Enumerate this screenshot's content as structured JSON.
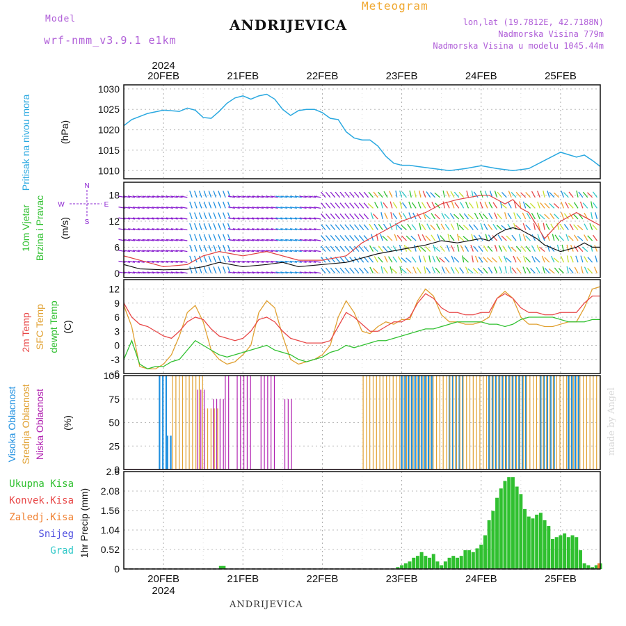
{
  "header": {
    "model_label": "Model",
    "model_name": "wrf-nmm_v3.9.1  e1km",
    "station": "ANDRIJEVICA",
    "meteogram": "Meteogram",
    "lonlat": "lon,lat (19.7812E, 42.7188N)",
    "altitude": "Nadmorska Visina 779m",
    "model_altitude": "Nadmorska Visina u modelu 1045.44m"
  },
  "footer": {
    "station": "ANDRIJEVICA",
    "credit": "made by Angel"
  },
  "date_axis": {
    "year": "2024",
    "labels": [
      "20FEB",
      "21FEB",
      "22FEB",
      "23FEB",
      "24FEB",
      "25FEB"
    ]
  },
  "colors": {
    "pressure": "#29a8e0",
    "wind_speed": "#111111",
    "wind_gust": "#e04040",
    "t2m": "#e84848",
    "sfc": "#e0a030",
    "dewpt": "#30c030",
    "high_cloud": "#2090e0",
    "mid_cloud": "#e0a030",
    "low_cloud": "#b020b0",
    "precip": "#30c030",
    "conv": "#e84848",
    "frz": "#f08030",
    "snow": "#5050e0",
    "hail": "#30c8c8",
    "wind_purple": "#8a20d0"
  },
  "panels": {
    "pressure": {
      "ylabel_name": "Pritisak na nivou mora",
      "unit": "(hPa)"
    },
    "wind": {
      "ylabel_name1": "10m Vjetar",
      "ylabel_name2": "Brzina i Pravac",
      "unit": "(m/s)",
      "compass_n": "N",
      "compass_s": "S",
      "compass_w": "W",
      "compass_e": "E"
    },
    "temp": {
      "label1": "2m Temp",
      "label2": "SFC Temp",
      "label3": "dewpt Temp",
      "unit": "(C)"
    },
    "cloud": {
      "label1": "Visoka Oblacnost",
      "label2": "Srednja Oblacnost",
      "label3": "Niska Oblacnost",
      "unit": "(%)"
    },
    "precip": {
      "unit": "1hr Precip (mm)",
      "legend": [
        "Ukupna Kisa",
        "Konvek.Kisa",
        "Zaledj.Kisa",
        "Snijeg",
        "Grad"
      ]
    }
  },
  "chart_data": [
    {
      "type": "line",
      "title": "",
      "ylabel": "Pritisak na nivou mora (hPa)",
      "ylim": [
        1008,
        1031
      ],
      "yticks": [
        1010,
        1015,
        1020,
        1025,
        1030
      ],
      "x_unit": "days since 20FEB 00UTC",
      "x": [
        -0.5,
        -0.4,
        -0.2,
        0,
        0.2,
        0.3,
        0.4,
        0.5,
        0.6,
        0.7,
        0.8,
        0.9,
        1.0,
        1.1,
        1.2,
        1.3,
        1.4,
        1.5,
        1.6,
        1.7,
        1.8,
        1.9,
        2.0,
        2.1,
        2.2,
        2.3,
        2.4,
        2.5,
        2.6,
        2.7,
        2.8,
        2.9,
        3.0,
        3.1,
        3.2,
        3.4,
        3.6,
        3.8,
        4.0,
        4.2,
        4.4,
        4.6,
        4.8,
        5.0,
        5.2,
        5.3,
        5.4,
        5.5
      ],
      "series": [
        {
          "name": "Pritisak",
          "values": [
            1021,
            1022.5,
            1024,
            1024.8,
            1024.5,
            1025.3,
            1024.8,
            1023,
            1022.8,
            1024.5,
            1026.5,
            1027.8,
            1028.3,
            1027.5,
            1028.3,
            1028.7,
            1027.5,
            1025,
            1023.5,
            1024.7,
            1025,
            1025,
            1024.2,
            1022.8,
            1022.5,
            1019.5,
            1018,
            1017.5,
            1017.5,
            1016,
            1013.5,
            1011.8,
            1011.3,
            1011.3,
            1011,
            1010.5,
            1010,
            1010.5,
            1011.2,
            1010.5,
            1010,
            1010.5,
            1012.5,
            1014.5,
            1013.3,
            1013.8,
            1012.5,
            1011
          ]
        }
      ]
    },
    {
      "type": "line",
      "title": "",
      "ylabel": "10m Vjetar Brzina i Pravac (m/s)",
      "ylim": [
        -1,
        21
      ],
      "yticks": [
        0,
        6,
        12,
        18
      ],
      "x_unit": "days since 20FEB 00UTC",
      "x": [
        -0.5,
        -0.3,
        0,
        0.3,
        0.5,
        0.7,
        1.0,
        1.3,
        1.5,
        1.7,
        2.0,
        2.3,
        2.5,
        2.7,
        3.0,
        3.3,
        3.5,
        3.7,
        4.0,
        4.1,
        4.2,
        4.3,
        4.4,
        4.5,
        4.6,
        4.7,
        4.8,
        5.0,
        5.2,
        5.3,
        5.4,
        5.5
      ],
      "series": [
        {
          "name": "speed",
          "values": [
            2,
            1,
            0.8,
            0.9,
            1.5,
            2.5,
            1.5,
            2,
            2.5,
            1.5,
            2,
            2.5,
            3.5,
            4.5,
            5.5,
            6.5,
            7.5,
            7,
            8,
            7.5,
            9,
            10,
            10.5,
            10,
            9,
            8,
            6.5,
            5,
            6,
            7,
            6,
            6
          ]
        },
        {
          "name": "gust",
          "values": [
            4,
            3,
            1.5,
            2,
            4,
            5,
            4,
            5,
            4,
            3,
            3,
            4,
            7,
            9,
            12,
            14,
            16,
            17,
            18,
            18,
            17,
            16,
            17,
            15,
            14,
            11,
            8,
            12,
            14,
            13,
            12,
            11
          ]
        }
      ]
    },
    {
      "type": "line",
      "title": "",
      "ylabel": "Temp (C)",
      "ylim": [
        -6,
        14
      ],
      "yticks": [
        -6,
        -3,
        0,
        3,
        6,
        9,
        12
      ],
      "x_unit": "days since 20FEB 00UTC",
      "x": [
        -0.5,
        -0.4,
        -0.3,
        -0.2,
        -0.1,
        0,
        0.1,
        0.2,
        0.3,
        0.4,
        0.5,
        0.6,
        0.7,
        0.8,
        0.9,
        1.0,
        1.1,
        1.2,
        1.3,
        1.4,
        1.5,
        1.6,
        1.7,
        1.8,
        1.9,
        2.0,
        2.1,
        2.2,
        2.3,
        2.4,
        2.5,
        2.6,
        2.7,
        2.8,
        2.9,
        3.0,
        3.1,
        3.2,
        3.3,
        3.4,
        3.5,
        3.6,
        3.7,
        3.8,
        3.9,
        4.0,
        4.1,
        4.2,
        4.3,
        4.4,
        4.5,
        4.6,
        4.7,
        4.8,
        4.9,
        5.0,
        5.1,
        5.2,
        5.3,
        5.4,
        5.5
      ],
      "series": [
        {
          "name": "2m Temp",
          "values": [
            9,
            6,
            4.5,
            4,
            3,
            2,
            1.5,
            3,
            5,
            6,
            5.5,
            3.5,
            2,
            1.5,
            1,
            1.5,
            3,
            5.5,
            6,
            5,
            3,
            1.5,
            1,
            0.5,
            0.5,
            0.5,
            1,
            4,
            7,
            6,
            4.5,
            3,
            3,
            4,
            5,
            5,
            6,
            9,
            11,
            10,
            8,
            7,
            7,
            6.5,
            6.5,
            7,
            7,
            10,
            11,
            10,
            8,
            7,
            7,
            6.5,
            6.5,
            7,
            7,
            7,
            9,
            10.5,
            10.5
          ]
        },
        {
          "name": "SFC Temp",
          "values": [
            8.5,
            4,
            -4.5,
            -5,
            -5,
            -4,
            -2,
            2,
            7,
            8.5,
            5,
            -1,
            -3,
            -4,
            -3.5,
            -2,
            0,
            7,
            9.5,
            8,
            2,
            -3,
            -4,
            -3.5,
            -3,
            -2,
            0,
            6,
            9.5,
            7,
            3,
            2.5,
            4,
            5,
            4.5,
            5.5,
            5.5,
            9.5,
            12,
            10.5,
            6.5,
            5,
            5,
            4.5,
            4.5,
            5,
            6,
            10,
            11.5,
            10,
            6,
            4.5,
            4.5,
            4,
            4,
            4.5,
            5,
            5,
            8,
            12,
            12.5
          ]
        },
        {
          "name": "dewpt Temp",
          "values": [
            -3,
            1,
            -4,
            -5,
            -4.5,
            -4.5,
            -3.5,
            -3,
            -1,
            1,
            0,
            -1,
            -2,
            -2.5,
            -2,
            -1.5,
            -1,
            -0.5,
            0,
            -1,
            -1.5,
            -2,
            -3,
            -3.5,
            -3,
            -2.5,
            -1.5,
            -1,
            0,
            -0.5,
            0,
            0.5,
            1,
            1,
            1.5,
            2,
            2.5,
            3,
            3.5,
            3.5,
            4,
            4.5,
            5,
            5,
            5,
            5,
            4.5,
            4.5,
            4,
            4.5,
            5.5,
            6,
            6,
            6,
            6,
            5.5,
            5,
            5,
            5,
            5.5,
            5.5
          ]
        }
      ]
    },
    {
      "type": "bar",
      "title": "",
      "ylabel": "Oblacnost (%)",
      "ylim": [
        0,
        100
      ],
      "yticks": [
        0,
        25,
        50,
        75,
        100
      ],
      "series": [
        {
          "name": "Visoka Oblacnost",
          "segments": [
            [
              -0.05,
              0.05,
              100
            ],
            [
              0.05,
              0.1,
              36
            ],
            [
              3.0,
              3.4,
              100
            ],
            [
              3.6,
              3.8,
              100
            ],
            [
              4.1,
              4.6,
              100
            ],
            [
              4.75,
              4.95,
              100
            ],
            [
              5.1,
              5.25,
              100
            ]
          ]
        },
        {
          "name": "Srednja Oblacnost",
          "segments": [
            [
              0.1,
              0.5,
              100
            ],
            [
              0.5,
              0.7,
              65
            ],
            [
              2.5,
              5.5,
              100
            ]
          ]
        },
        {
          "name": "Niska Oblacnost",
          "segments": [
            [
              0.4,
              0.5,
              85
            ],
            [
              0.6,
              0.75,
              75
            ],
            [
              0.75,
              0.8,
              100
            ],
            [
              0.9,
              1.1,
              100
            ],
            [
              1.2,
              1.4,
              100
            ],
            [
              1.5,
              1.6,
              75
            ]
          ]
        }
      ]
    },
    {
      "type": "bar",
      "title": "",
      "ylabel": "1hr Precip (mm)",
      "ylim": [
        0,
        2.6
      ],
      "yticks": [
        0,
        0.52,
        1.04,
        1.56,
        2.08,
        2.6
      ],
      "x_unit": "days since 20FEB 00UTC",
      "series": [
        {
          "name": "Ukupna Kisa",
          "x": [
            0.72,
            0.76,
            2.95,
            3.0,
            3.05,
            3.1,
            3.15,
            3.2,
            3.25,
            3.3,
            3.35,
            3.4,
            3.45,
            3.5,
            3.55,
            3.6,
            3.65,
            3.7,
            3.75,
            3.8,
            3.85,
            3.9,
            3.95,
            4.0,
            4.05,
            4.1,
            4.15,
            4.2,
            4.25,
            4.3,
            4.35,
            4.4,
            4.45,
            4.5,
            4.55,
            4.6,
            4.65,
            4.7,
            4.75,
            4.8,
            4.85,
            4.9,
            4.95,
            5.0,
            5.05,
            5.1,
            5.15,
            5.2,
            5.25,
            5.3,
            5.35,
            5.4,
            5.45,
            5.5
          ],
          "values": [
            0.08,
            0.08,
            0.05,
            0.1,
            0.15,
            0.2,
            0.3,
            0.35,
            0.45,
            0.35,
            0.3,
            0.4,
            0.2,
            0.1,
            0.2,
            0.3,
            0.35,
            0.3,
            0.35,
            0.5,
            0.5,
            0.45,
            0.55,
            0.65,
            0.9,
            1.3,
            1.55,
            1.9,
            2.15,
            2.35,
            2.45,
            2.45,
            2.2,
            2.0,
            1.6,
            1.4,
            1.35,
            1.45,
            1.5,
            1.3,
            1.15,
            0.8,
            0.85,
            0.9,
            0.95,
            0.85,
            0.9,
            0.85,
            0.5,
            0.15,
            0.1,
            0.05,
            0.1,
            0.15
          ]
        }
      ]
    }
  ]
}
